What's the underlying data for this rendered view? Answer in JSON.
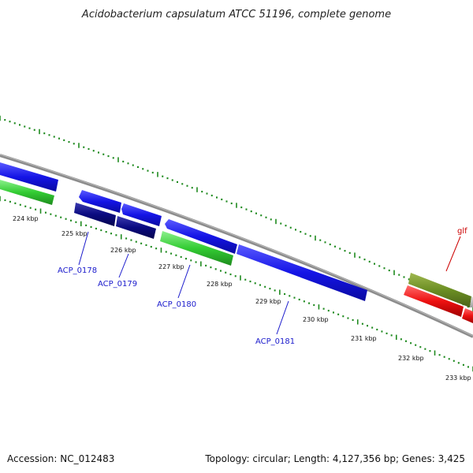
{
  "title": "Acidobacterium capsulatum ATCC 51196, complete genome",
  "footer": {
    "accession": "Accession: NC_012483",
    "summary": "Topology: circular; Length: 4,127,356 bp; Genes: 3,425"
  },
  "ticks": [
    "224 kbp",
    "225 kbp",
    "226 kbp",
    "227 kbp",
    "228 kbp",
    "229 kbp",
    "230 kbp",
    "231 kbp",
    "232 kbp",
    "233 kbp"
  ],
  "genes": [
    {
      "label": "ACP_0178",
      "color": "#1a1acc"
    },
    {
      "label": "ACP_0179",
      "color": "#1a1acc"
    },
    {
      "label": "ACP_0180",
      "color": "#1a1acc"
    },
    {
      "label": "ACP_0181",
      "color": "#1a1acc"
    },
    {
      "label": "glf",
      "color": "#cc0000"
    }
  ],
  "colors": {
    "backbone": "#8c8c8c",
    "forward_cds": "#1414e6",
    "reverse_cds": "#0a0a80",
    "rna": "#33cc33",
    "olive": "#6b8e23",
    "red_cds": "#ee1111",
    "gc_track": "#1f8a1f"
  }
}
